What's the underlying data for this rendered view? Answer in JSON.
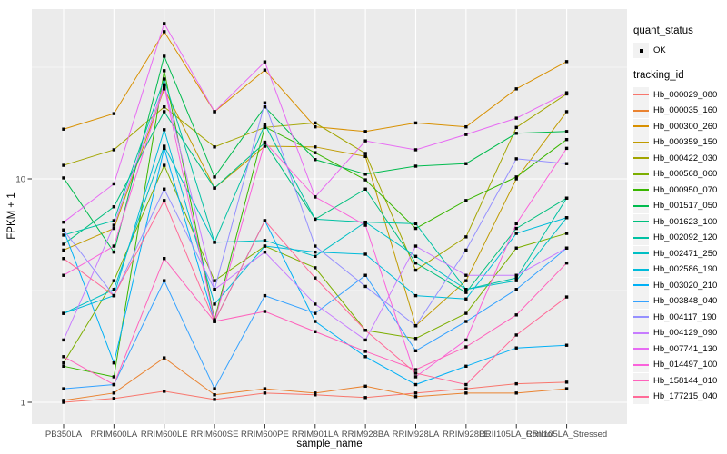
{
  "figure": {
    "background": "#FFFFFF",
    "panel_background": "#EBEBEB",
    "grid_color": "#FFFFFF",
    "tick_text_color": "#4D4D4D",
    "tick_mark_color": "#333333",
    "point_color": "#000000",
    "legend_key_background": "#F2F2F2"
  },
  "legend": {
    "quant_status_title": "quant_status",
    "quant_status_label": "OK",
    "quant_status_marker": "black-point-icon",
    "tracking_title": "tracking_id",
    "position": "right"
  },
  "chart_data": {
    "type": "line",
    "title": "",
    "xlabel": "sample_name",
    "ylabel": "FPKM + 1",
    "y_scale": "log10",
    "y_tick_labels": [
      "1",
      "10"
    ],
    "y_ticks": [
      1,
      10
    ],
    "y_minor_gridlines": [
      3.1623,
      31.623
    ],
    "ylim": [
      0.82,
      55
    ],
    "grid": "white on grey panel (ggplot2 style)",
    "marker": "small black point on every value (quant_status = OK)",
    "legend_position": "right",
    "categories": [
      "PB350LA",
      "RRIM600LA",
      "RRIM600LE",
      "RRIM600SE",
      "RRIM600PE",
      "RRIM901LA",
      "RRIM928BA",
      "RRIM928LA",
      "RRIM928LE",
      "RRII105LA_Control",
      "RRII105LA_Stressed"
    ],
    "series": [
      {
        "name": "Hb_000029_080",
        "color": "#F8766D",
        "values": [
          1.0,
          1.04,
          1.12,
          1.03,
          1.1,
          1.08,
          1.05,
          1.1,
          1.15,
          1.21,
          1.23
        ]
      },
      {
        "name": "Hb_000035_160",
        "color": "#EA8331",
        "values": [
          1.02,
          1.1,
          1.58,
          1.08,
          1.15,
          1.1,
          1.18,
          1.06,
          1.1,
          1.1,
          1.15
        ]
      },
      {
        "name": "Hb_000300_260",
        "color": "#D89000",
        "values": [
          16.7,
          19.6,
          45.6,
          20.0,
          30.7,
          17.1,
          16.3,
          17.8,
          17.1,
          25.3,
          33.5
        ]
      },
      {
        "name": "Hb_000359_150",
        "color": "#C09B00",
        "values": [
          4.8,
          6.0,
          25.3,
          9.1,
          14.0,
          13.9,
          12.6,
          2.2,
          3.5,
          10.0,
          20.0
        ]
      },
      {
        "name": "Hb_000422_030",
        "color": "#A3A500",
        "values": [
          11.5,
          13.5,
          21.0,
          13.9,
          17.0,
          17.8,
          13.0,
          3.9,
          5.5,
          17.0,
          24.0
        ]
      },
      {
        "name": "Hb_000568_060",
        "color": "#7CAE00",
        "values": [
          1.5,
          3.5,
          11.5,
          3.5,
          5.0,
          4.0,
          2.1,
          1.93,
          2.5,
          4.9,
          5.7
        ]
      },
      {
        "name": "Hb_000950_070",
        "color": "#39B600",
        "values": [
          1.45,
          1.3,
          30.5,
          2.34,
          17.1,
          13.1,
          9.9,
          6.0,
          8.0,
          10.2,
          15.0
        ]
      },
      {
        "name": "Hb_001517_050",
        "color": "#00BB4E",
        "values": [
          10.1,
          4.7,
          35.4,
          10.2,
          21.0,
          12.2,
          10.5,
          11.4,
          11.7,
          16.0,
          16.3
        ]
      },
      {
        "name": "Hb_001623_100",
        "color": "#00BF7D",
        "values": [
          5.1,
          7.5,
          20.0,
          9.1,
          14.5,
          6.6,
          9.0,
          4.2,
          3.1,
          6.0,
          8.2
        ]
      },
      {
        "name": "Hb_002092_120",
        "color": "#00C1A3",
        "values": [
          5.6,
          6.5,
          28.0,
          5.2,
          17.5,
          6.6,
          6.4,
          6.3,
          3.2,
          3.6,
          8.2
        ]
      },
      {
        "name": "Hb_002471_250",
        "color": "#00BFC4",
        "values": [
          2.5,
          3.2,
          14.0,
          5.2,
          5.3,
          4.5,
          6.4,
          4.5,
          3.2,
          3.5,
          6.7
        ]
      },
      {
        "name": "Hb_002586_190",
        "color": "#00BBDA",
        "values": [
          2.5,
          3.0,
          16.6,
          2.75,
          5.0,
          4.7,
          4.6,
          3.0,
          2.9,
          5.7,
          6.7
        ]
      },
      {
        "name": "Hb_003020_210",
        "color": "#00B0F6",
        "values": [
          5.9,
          1.5,
          13.7,
          2.3,
          6.5,
          2.3,
          1.6,
          1.2,
          1.45,
          1.75,
          1.8
        ]
      },
      {
        "name": "Hb_003848_040",
        "color": "#35A2FF",
        "values": [
          1.15,
          1.2,
          3.5,
          1.15,
          3.0,
          2.5,
          3.7,
          1.7,
          2.3,
          3.2,
          4.9
        ]
      },
      {
        "name": "Hb_004117_190",
        "color": "#9590FF",
        "values": [
          5.9,
          3.0,
          9.0,
          3.2,
          21.9,
          5.0,
          3.3,
          2.2,
          4.8,
          12.3,
          11.7
        ]
      },
      {
        "name": "Hb_004129_090",
        "color": "#C77CFF",
        "values": [
          1.9,
          6.2,
          26.4,
          3.2,
          4.7,
          2.75,
          1.9,
          5.0,
          3.7,
          3.7,
          4.9
        ]
      },
      {
        "name": "Hb_007741_130",
        "color": "#E76BF3",
        "values": [
          6.4,
          9.5,
          49.6,
          20.0,
          33.4,
          8.3,
          14.8,
          13.5,
          15.8,
          18.7,
          24.3
        ]
      },
      {
        "name": "Hb_014497_100",
        "color": "#FA62DB",
        "values": [
          3.7,
          5.0,
          26.0,
          2.3,
          14.6,
          8.3,
          6.2,
          1.3,
          1.9,
          6.3,
          13.7
        ]
      },
      {
        "name": "Hb_158144_010",
        "color": "#FF62BC",
        "values": [
          1.6,
          1.2,
          4.4,
          2.3,
          2.55,
          2.07,
          1.69,
          1.4,
          1.77,
          2.46,
          4.2
        ]
      },
      {
        "name": "Hb_177215_040",
        "color": "#FF6A98",
        "values": [
          4.4,
          3.0,
          8.0,
          2.3,
          6.5,
          3.6,
          2.1,
          1.35,
          1.2,
          2.0,
          2.96
        ]
      }
    ]
  }
}
